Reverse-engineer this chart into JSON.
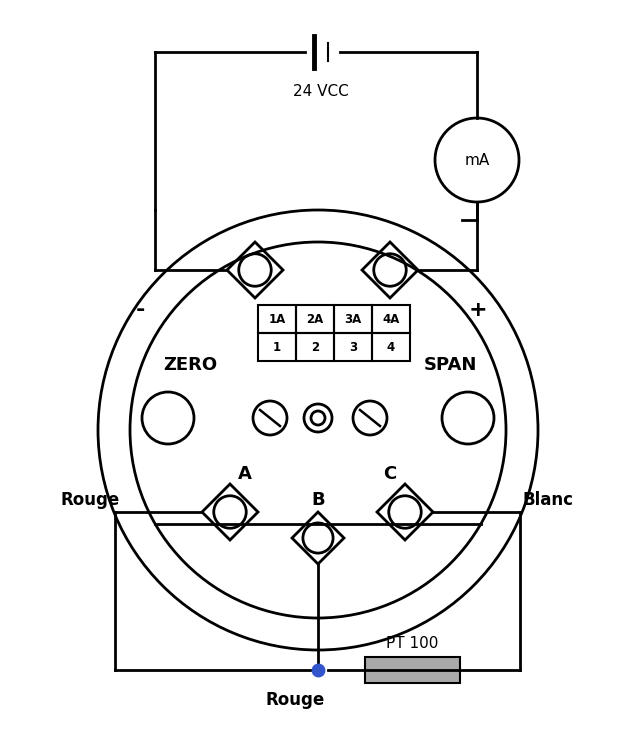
{
  "bg_color": "#ffffff",
  "line_color": "#000000",
  "title_text": "24 VCC",
  "zero_label": "ZERO",
  "span_label": "SPAN",
  "rouge_left": "Rouge",
  "rouge_bottom": "Rouge",
  "blanc_label": "Blanc",
  "pt100_label": "PT 100",
  "mA_label": "mA",
  "terminal_labels_top": [
    "1A",
    "2A",
    "3A",
    "4A"
  ],
  "terminal_labels_bot": [
    "1",
    "2",
    "3",
    "4"
  ],
  "minus_label": "-",
  "plus_label": "+"
}
